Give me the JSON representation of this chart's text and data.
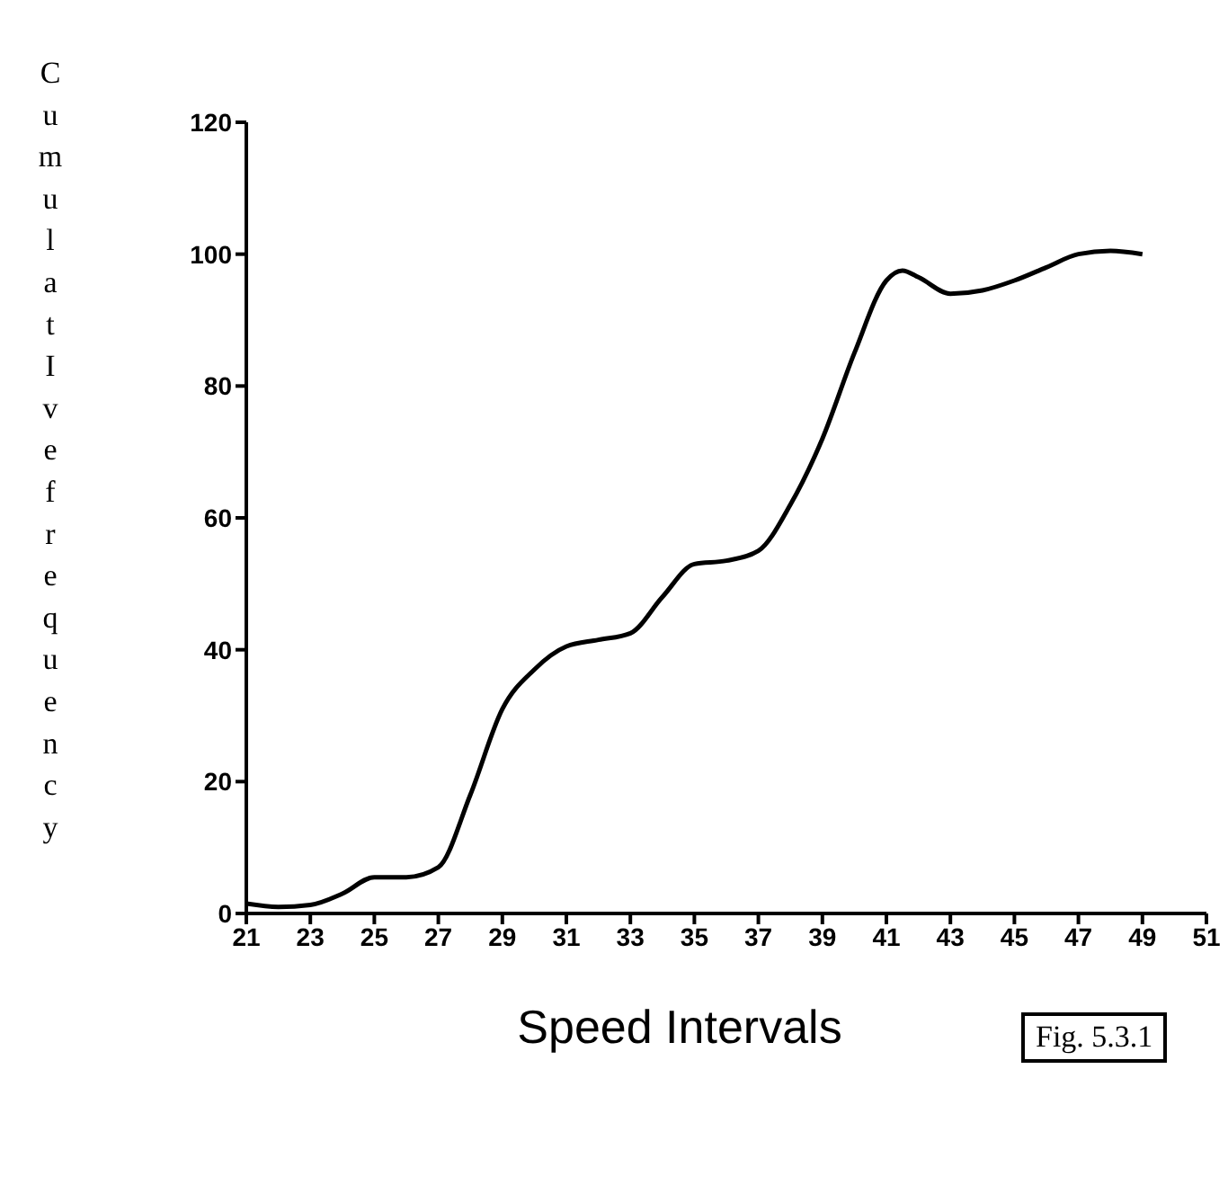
{
  "chart_data": {
    "type": "line",
    "xlabel": "Speed Intervals",
    "ylabel": "CumulatIve frequency",
    "annotations": [
      "Fig. 5.3.1"
    ],
    "x": [
      21,
      22,
      23,
      24,
      25,
      26,
      27,
      28,
      29,
      30,
      31,
      32,
      33,
      34,
      35,
      36,
      37,
      38,
      39,
      40,
      41,
      41.5,
      42,
      43,
      44,
      45,
      46,
      47,
      48,
      49
    ],
    "values": [
      1.5,
      1,
      1.3,
      3,
      5.5,
      5.5,
      7,
      18,
      31,
      37,
      40.5,
      41.5,
      42.5,
      48,
      53,
      53.5,
      55,
      62,
      72,
      85,
      96,
      97.5,
      96.5,
      94,
      94.5,
      96,
      98,
      100,
      100.5,
      100
    ],
    "color": "#000000",
    "xlim": [
      21,
      51
    ],
    "xticks": [
      21,
      23,
      25,
      27,
      29,
      31,
      33,
      35,
      37,
      39,
      41,
      43,
      45,
      47,
      49,
      51
    ],
    "ylim": [
      0,
      120
    ],
    "yticks": [
      0,
      20,
      40,
      60,
      80,
      100,
      120
    ],
    "marker": "none",
    "line_style": "solid"
  }
}
